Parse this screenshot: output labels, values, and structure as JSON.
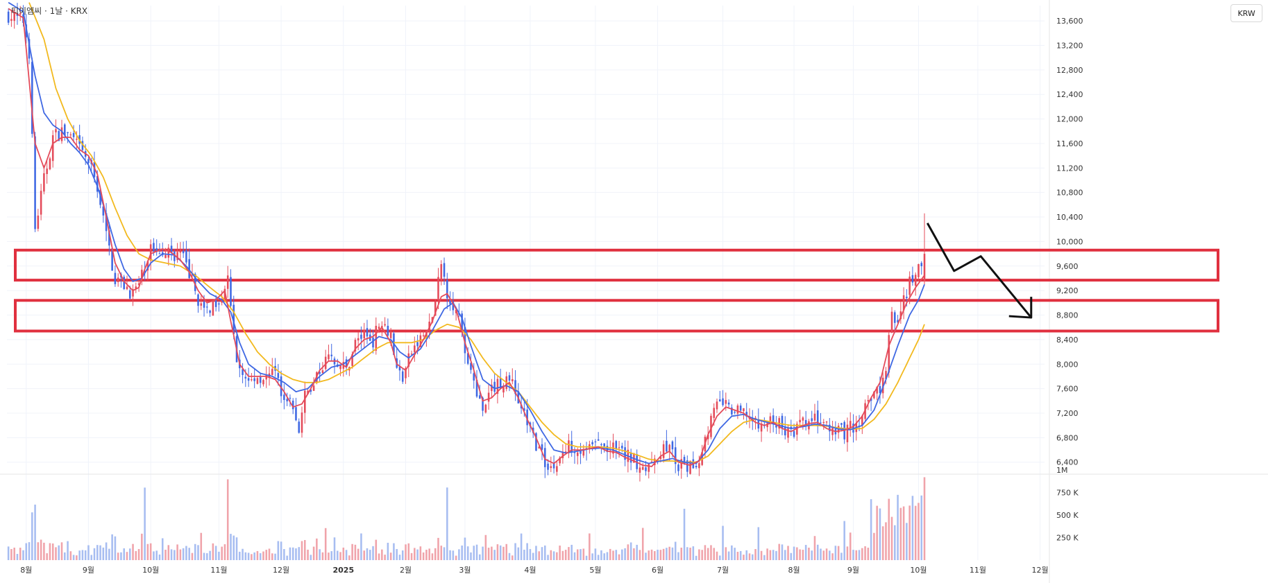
{
  "title": "티이엠씨 · 1날 · KRX",
  "currency_button": "KRW",
  "colors": {
    "up": "#e44b5a",
    "down": "#3f68e3",
    "up_volume": "#f0a3aa",
    "down_volume": "#a7bdf1",
    "ma_short": "#e44b5a",
    "ma_mid": "#3f68e3",
    "ma_long": "#f2b91e",
    "zone_box": "#e0303f",
    "arrow": "#111111"
  },
  "chart_data": {
    "type": "candlestick",
    "y_axis_ticks": [
      "13,600",
      "13,200",
      "12,800",
      "12,400",
      "12,000",
      "11,600",
      "11,200",
      "10,800",
      "10,400",
      "10,000",
      "9,600",
      "9,200",
      "8,800",
      "8,400",
      "8,000",
      "7,600",
      "7,200",
      "6,800",
      "6,400"
    ],
    "y_tick_values": [
      13600,
      13200,
      12800,
      12400,
      12000,
      11600,
      11200,
      10800,
      10400,
      10000,
      9600,
      9200,
      8800,
      8400,
      8000,
      7600,
      7200,
      6800,
      6400
    ],
    "ylim": [
      6250,
      13850
    ],
    "volume_axis_ticks": [
      "1M",
      "750 K",
      "500 K",
      "250 K"
    ],
    "volume_tick_values": [
      1000000,
      750000,
      500000,
      250000
    ],
    "volume_max": 1000000,
    "x_axis_labels": [
      "8월",
      "9월",
      "10월",
      "11월",
      "12월",
      "2025",
      "2월",
      "3월",
      "4월",
      "5월",
      "6월",
      "7월",
      "8월",
      "9월",
      "10월",
      "11월",
      "12월"
    ],
    "x_label_day_index": [
      6,
      27,
      48,
      71,
      92,
      113,
      134,
      154,
      176,
      198,
      219,
      241,
      265,
      285,
      307,
      327,
      348
    ],
    "total_days": 350,
    "anchors": [
      [
        0,
        13700
      ],
      [
        2,
        13650
      ],
      [
        5,
        13600
      ],
      [
        7,
        13100
      ],
      [
        9,
        10200
      ],
      [
        12,
        11000
      ],
      [
        15,
        11700
      ],
      [
        18,
        11800
      ],
      [
        21,
        11700
      ],
      [
        24,
        11500
      ],
      [
        27,
        11300
      ],
      [
        30,
        10900
      ],
      [
        33,
        10100
      ],
      [
        36,
        9400
      ],
      [
        39,
        9300
      ],
      [
        42,
        9150
      ],
      [
        44,
        9300
      ],
      [
        46,
        9600
      ],
      [
        48,
        9900
      ],
      [
        52,
        9900
      ],
      [
        55,
        9800
      ],
      [
        58,
        9800
      ],
      [
        61,
        9500
      ],
      [
        63,
        9200
      ],
      [
        66,
        8800
      ],
      [
        69,
        9000
      ],
      [
        72,
        9150
      ],
      [
        74,
        9400
      ],
      [
        76,
        8400
      ],
      [
        78,
        7900
      ],
      [
        81,
        7700
      ],
      [
        84,
        7800
      ],
      [
        87,
        7800
      ],
      [
        90,
        7800
      ],
      [
        92,
        7600
      ],
      [
        95,
        7400
      ],
      [
        98,
        6900
      ],
      [
        100,
        7450
      ],
      [
        103,
        7700
      ],
      [
        106,
        8000
      ],
      [
        109,
        8150
      ],
      [
        112,
        8000
      ],
      [
        114,
        7900
      ],
      [
        117,
        8350
      ],
      [
        120,
        8500
      ],
      [
        123,
        8400
      ],
      [
        126,
        8750
      ],
      [
        129,
        8500
      ],
      [
        131,
        7900
      ],
      [
        133,
        7800
      ],
      [
        136,
        8200
      ],
      [
        139,
        8400
      ],
      [
        142,
        8600
      ],
      [
        144,
        9000
      ],
      [
        146,
        9600
      ],
      [
        148,
        9200
      ],
      [
        150,
        9000
      ],
      [
        152,
        8700
      ],
      [
        154,
        8200
      ],
      [
        157,
        7800
      ],
      [
        160,
        7150
      ],
      [
        163,
        7600
      ],
      [
        166,
        7700
      ],
      [
        169,
        7800
      ],
      [
        172,
        7400
      ],
      [
        175,
        7050
      ],
      [
        178,
        6700
      ],
      [
        181,
        6400
      ],
      [
        184,
        6300
      ],
      [
        187,
        6550
      ],
      [
        190,
        6700
      ],
      [
        193,
        6600
      ],
      [
        196,
        6650
      ],
      [
        199,
        6700
      ],
      [
        202,
        6600
      ],
      [
        205,
        6600
      ],
      [
        208,
        6500
      ],
      [
        211,
        6450
      ],
      [
        214,
        6350
      ],
      [
        217,
        6300
      ],
      [
        220,
        6600
      ],
      [
        223,
        6650
      ],
      [
        226,
        6300
      ],
      [
        228,
        6350
      ],
      [
        230,
        6300
      ],
      [
        233,
        6450
      ],
      [
        235,
        6800
      ],
      [
        237,
        7100
      ],
      [
        239,
        7300
      ],
      [
        241,
        7400
      ],
      [
        243,
        7250
      ],
      [
        246,
        7200
      ],
      [
        249,
        7200
      ],
      [
        252,
        7000
      ],
      [
        255,
        7000
      ],
      [
        258,
        7100
      ],
      [
        261,
        6950
      ],
      [
        264,
        6850
      ],
      [
        267,
        7000
      ],
      [
        270,
        7050
      ],
      [
        273,
        7100
      ],
      [
        276,
        6950
      ],
      [
        279,
        6850
      ],
      [
        282,
        6900
      ],
      [
        285,
        7000
      ],
      [
        287,
        7000
      ],
      [
        289,
        7300
      ],
      [
        292,
        7500
      ],
      [
        294,
        7600
      ],
      [
        296,
        8000
      ],
      [
        298,
        8800
      ],
      [
        300,
        8600
      ],
      [
        302,
        9100
      ],
      [
        304,
        9300
      ],
      [
        306,
        9400
      ],
      [
        308,
        9650
      ],
      [
        309,
        9900
      ]
    ],
    "ma_short_anchors": [
      [
        0,
        13800
      ],
      [
        5,
        13650
      ],
      [
        9,
        11600
      ],
      [
        12,
        11200
      ],
      [
        15,
        11600
      ],
      [
        18,
        11700
      ],
      [
        21,
        11700
      ],
      [
        24,
        11500
      ],
      [
        27,
        11400
      ],
      [
        30,
        11100
      ],
      [
        33,
        10400
      ],
      [
        36,
        9650
      ],
      [
        39,
        9350
      ],
      [
        42,
        9200
      ],
      [
        44,
        9250
      ],
      [
        46,
        9550
      ],
      [
        48,
        9800
      ],
      [
        52,
        9880
      ],
      [
        55,
        9820
      ],
      [
        58,
        9700
      ],
      [
        61,
        9500
      ],
      [
        64,
        9200
      ],
      [
        67,
        9000
      ],
      [
        70,
        9050
      ],
      [
        73,
        9200
      ],
      [
        75,
        8700
      ],
      [
        78,
        8000
      ],
      [
        81,
        7800
      ],
      [
        84,
        7800
      ],
      [
        87,
        7800
      ],
      [
        90,
        7750
      ],
      [
        93,
        7550
      ],
      [
        96,
        7300
      ],
      [
        99,
        7350
      ],
      [
        102,
        7600
      ],
      [
        105,
        7900
      ],
      [
        108,
        8050
      ],
      [
        111,
        8050
      ],
      [
        114,
        7950
      ],
      [
        117,
        8250
      ],
      [
        120,
        8400
      ],
      [
        123,
        8450
      ],
      [
        126,
        8600
      ],
      [
        129,
        8350
      ],
      [
        131,
        8000
      ],
      [
        134,
        7900
      ],
      [
        137,
        8150
      ],
      [
        140,
        8400
      ],
      [
        143,
        8700
      ],
      [
        146,
        9100
      ],
      [
        148,
        9150
      ],
      [
        151,
        8900
      ],
      [
        154,
        8350
      ],
      [
        157,
        7900
      ],
      [
        160,
        7400
      ],
      [
        163,
        7450
      ],
      [
        166,
        7600
      ],
      [
        169,
        7700
      ],
      [
        172,
        7450
      ],
      [
        175,
        7100
      ],
      [
        178,
        6800
      ],
      [
        181,
        6450
      ],
      [
        184,
        6380
      ],
      [
        187,
        6500
      ],
      [
        190,
        6600
      ],
      [
        193,
        6600
      ],
      [
        196,
        6620
      ],
      [
        199,
        6650
      ],
      [
        202,
        6580
      ],
      [
        205,
        6560
      ],
      [
        208,
        6480
      ],
      [
        211,
        6420
      ],
      [
        214,
        6350
      ],
      [
        217,
        6330
      ],
      [
        220,
        6500
      ],
      [
        223,
        6580
      ],
      [
        226,
        6400
      ],
      [
        230,
        6350
      ],
      [
        233,
        6420
      ],
      [
        236,
        6850
      ],
      [
        239,
        7150
      ],
      [
        242,
        7300
      ],
      [
        245,
        7250
      ],
      [
        248,
        7200
      ],
      [
        252,
        7050
      ],
      [
        255,
        7000
      ],
      [
        258,
        7050
      ],
      [
        261,
        6950
      ],
      [
        264,
        6900
      ],
      [
        267,
        6980
      ],
      [
        270,
        7030
      ],
      [
        273,
        7050
      ],
      [
        276,
        6950
      ],
      [
        279,
        6900
      ],
      [
        282,
        6920
      ],
      [
        285,
        6980
      ],
      [
        288,
        7150
      ],
      [
        291,
        7450
      ],
      [
        294,
        7700
      ],
      [
        297,
        8300
      ],
      [
        300,
        8650
      ],
      [
        303,
        9000
      ],
      [
        306,
        9250
      ],
      [
        309,
        9450
      ]
    ],
    "ma_mid_anchors": [
      [
        0,
        13900
      ],
      [
        5,
        13750
      ],
      [
        9,
        12700
      ],
      [
        12,
        12100
      ],
      [
        15,
        11900
      ],
      [
        18,
        11800
      ],
      [
        21,
        11600
      ],
      [
        24,
        11450
      ],
      [
        27,
        11250
      ],
      [
        30,
        10900
      ],
      [
        33,
        10450
      ],
      [
        36,
        9950
      ],
      [
        39,
        9550
      ],
      [
        42,
        9350
      ],
      [
        45,
        9400
      ],
      [
        48,
        9650
      ],
      [
        52,
        9800
      ],
      [
        56,
        9780
      ],
      [
        60,
        9600
      ],
      [
        64,
        9350
      ],
      [
        68,
        9150
      ],
      [
        72,
        9050
      ],
      [
        75,
        8850
      ],
      [
        78,
        8350
      ],
      [
        81,
        8000
      ],
      [
        85,
        7850
      ],
      [
        89,
        7800
      ],
      [
        93,
        7700
      ],
      [
        97,
        7550
      ],
      [
        101,
        7600
      ],
      [
        105,
        7800
      ],
      [
        109,
        7950
      ],
      [
        113,
        8000
      ],
      [
        117,
        8150
      ],
      [
        121,
        8300
      ],
      [
        125,
        8450
      ],
      [
        129,
        8400
      ],
      [
        132,
        8200
      ],
      [
        135,
        8100
      ],
      [
        139,
        8250
      ],
      [
        143,
        8550
      ],
      [
        147,
        8900
      ],
      [
        150,
        9000
      ],
      [
        153,
        8750
      ],
      [
        156,
        8300
      ],
      [
        160,
        7750
      ],
      [
        164,
        7600
      ],
      [
        168,
        7650
      ],
      [
        172,
        7550
      ],
      [
        176,
        7250
      ],
      [
        180,
        6900
      ],
      [
        184,
        6600
      ],
      [
        188,
        6550
      ],
      [
        192,
        6580
      ],
      [
        196,
        6620
      ],
      [
        200,
        6630
      ],
      [
        204,
        6600
      ],
      [
        208,
        6520
      ],
      [
        212,
        6440
      ],
      [
        216,
        6380
      ],
      [
        220,
        6420
      ],
      [
        224,
        6460
      ],
      [
        228,
        6400
      ],
      [
        232,
        6380
      ],
      [
        236,
        6600
      ],
      [
        240,
        6950
      ],
      [
        244,
        7150
      ],
      [
        248,
        7180
      ],
      [
        252,
        7100
      ],
      [
        256,
        7050
      ],
      [
        260,
        7000
      ],
      [
        264,
        6950
      ],
      [
        268,
        6980
      ],
      [
        272,
        7020
      ],
      [
        276,
        7000
      ],
      [
        280,
        6940
      ],
      [
        284,
        6930
      ],
      [
        288,
        7000
      ],
      [
        292,
        7250
      ],
      [
        296,
        7750
      ],
      [
        300,
        8300
      ],
      [
        304,
        8800
      ],
      [
        307,
        9050
      ],
      [
        309,
        9300
      ]
    ],
    "ma_long_anchors": [
      [
        7,
        13900
      ],
      [
        12,
        13300
      ],
      [
        16,
        12500
      ],
      [
        20,
        12000
      ],
      [
        24,
        11650
      ],
      [
        28,
        11400
      ],
      [
        32,
        11050
      ],
      [
        36,
        10550
      ],
      [
        40,
        10100
      ],
      [
        44,
        9800
      ],
      [
        48,
        9700
      ],
      [
        53,
        9650
      ],
      [
        58,
        9600
      ],
      [
        63,
        9450
      ],
      [
        68,
        9250
      ],
      [
        72,
        9100
      ],
      [
        76,
        8850
      ],
      [
        80,
        8500
      ],
      [
        84,
        8200
      ],
      [
        88,
        8000
      ],
      [
        92,
        7850
      ],
      [
        96,
        7750
      ],
      [
        100,
        7700
      ],
      [
        104,
        7700
      ],
      [
        108,
        7750
      ],
      [
        112,
        7850
      ],
      [
        116,
        7950
      ],
      [
        120,
        8100
      ],
      [
        124,
        8250
      ],
      [
        128,
        8350
      ],
      [
        132,
        8350
      ],
      [
        136,
        8350
      ],
      [
        140,
        8400
      ],
      [
        144,
        8550
      ],
      [
        148,
        8650
      ],
      [
        152,
        8600
      ],
      [
        156,
        8400
      ],
      [
        160,
        8100
      ],
      [
        164,
        7850
      ],
      [
        168,
        7700
      ],
      [
        172,
        7550
      ],
      [
        176,
        7300
      ],
      [
        180,
        7050
      ],
      [
        184,
        6850
      ],
      [
        188,
        6700
      ],
      [
        192,
        6650
      ],
      [
        196,
        6650
      ],
      [
        200,
        6650
      ],
      [
        204,
        6630
      ],
      [
        208,
        6580
      ],
      [
        212,
        6520
      ],
      [
        216,
        6450
      ],
      [
        220,
        6420
      ],
      [
        224,
        6420
      ],
      [
        228,
        6400
      ],
      [
        232,
        6400
      ],
      [
        236,
        6500
      ],
      [
        240,
        6700
      ],
      [
        244,
        6900
      ],
      [
        248,
        7050
      ],
      [
        252,
        7100
      ],
      [
        256,
        7070
      ],
      [
        260,
        7030
      ],
      [
        264,
        7000
      ],
      [
        268,
        7000
      ],
      [
        272,
        7000
      ],
      [
        276,
        6990
      ],
      [
        280,
        6960
      ],
      [
        284,
        6940
      ],
      [
        288,
        6950
      ],
      [
        292,
        7100
      ],
      [
        296,
        7350
      ],
      [
        300,
        7700
      ],
      [
        304,
        8100
      ],
      [
        307,
        8400
      ],
      [
        309,
        8650
      ]
    ],
    "zones": [
      {
        "name": "resistance-zone-upper",
        "price_top": 9860,
        "price_bottom": 9370
      },
      {
        "name": "resistance-zone-lower",
        "price_top": 9040,
        "price_bottom": 8540
      }
    ],
    "forecast_arrow": {
      "day_points": [
        310,
        319,
        328,
        345
      ],
      "price_points": [
        10300,
        9520,
        9760,
        8760
      ]
    },
    "last_candle_high": 10460
  }
}
